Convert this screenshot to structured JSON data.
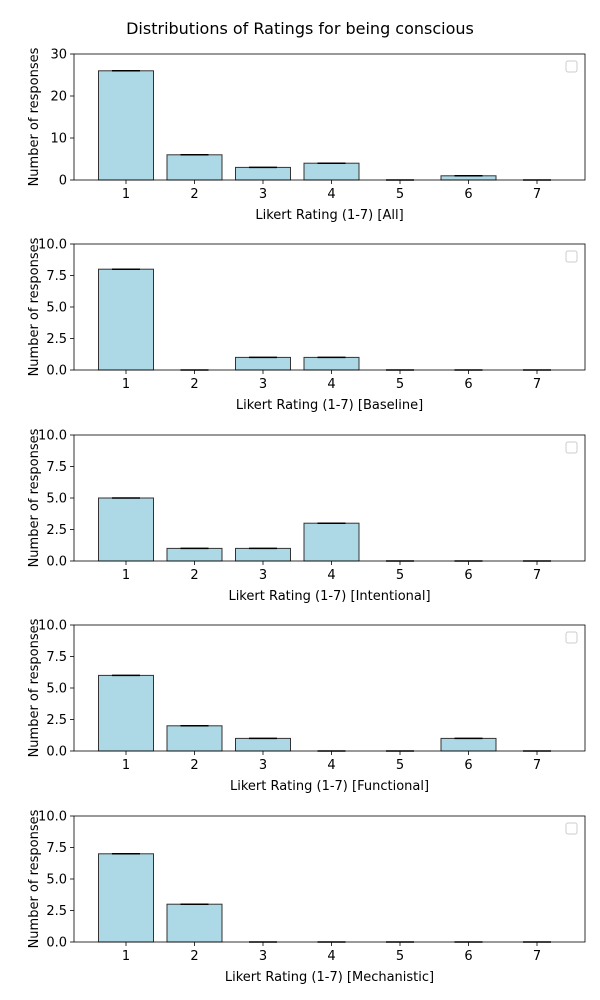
{
  "figure": {
    "title": "Distributions of Ratings for being conscious"
  },
  "colors": {
    "bar_fill": "#add8e6",
    "bar_edge": "#333333",
    "axes": "#000000",
    "legend_box": "#cccccc"
  },
  "chart_data": [
    {
      "type": "bar",
      "categories": [
        "1",
        "2",
        "3",
        "4",
        "5",
        "6",
        "7"
      ],
      "values": [
        26,
        6,
        3,
        4,
        0,
        1,
        0
      ],
      "xlabel": "Likert Rating (1-7) [All]",
      "ylabel": "Number of responses",
      "ylim": [
        0,
        30
      ],
      "yticks": [
        "0",
        "10",
        "20",
        "30"
      ],
      "grid": false,
      "legend": "upper right (empty)"
    },
    {
      "type": "bar",
      "categories": [
        "1",
        "2",
        "3",
        "4",
        "5",
        "6",
        "7"
      ],
      "values": [
        8,
        0,
        1,
        1,
        0,
        0,
        0
      ],
      "xlabel": "Likert Rating (1-7) [Baseline]",
      "ylabel": "Number of responses",
      "ylim": [
        0,
        10
      ],
      "yticks": [
        "0.0",
        "2.5",
        "5.0",
        "7.5",
        "10.0"
      ],
      "grid": false,
      "legend": "upper right (empty)"
    },
    {
      "type": "bar",
      "categories": [
        "1",
        "2",
        "3",
        "4",
        "5",
        "6",
        "7"
      ],
      "values": [
        5,
        1,
        1,
        3,
        0,
        0,
        0
      ],
      "xlabel": "Likert Rating (1-7) [Intentional]",
      "ylabel": "Number of responses",
      "ylim": [
        0,
        10
      ],
      "yticks": [
        "0.0",
        "2.5",
        "5.0",
        "7.5",
        "10.0"
      ],
      "grid": false,
      "legend": "upper right (empty)"
    },
    {
      "type": "bar",
      "categories": [
        "1",
        "2",
        "3",
        "4",
        "5",
        "6",
        "7"
      ],
      "values": [
        6,
        2,
        1,
        0,
        0,
        1,
        0
      ],
      "xlabel": "Likert Rating (1-7) [Functional]",
      "ylabel": "Number of responses",
      "ylim": [
        0,
        10
      ],
      "yticks": [
        "0.0",
        "2.5",
        "5.0",
        "7.5",
        "10.0"
      ],
      "grid": false,
      "legend": "upper right (empty)"
    },
    {
      "type": "bar",
      "categories": [
        "1",
        "2",
        "3",
        "4",
        "5",
        "6",
        "7"
      ],
      "values": [
        7,
        3,
        0,
        0,
        0,
        0,
        0
      ],
      "xlabel": "Likert Rating (1-7) [Mechanistic]",
      "ylabel": "Number of responses",
      "ylim": [
        0,
        10
      ],
      "yticks": [
        "0.0",
        "2.5",
        "5.0",
        "7.5",
        "10.0"
      ],
      "grid": false,
      "legend": "upper right (empty)"
    }
  ]
}
